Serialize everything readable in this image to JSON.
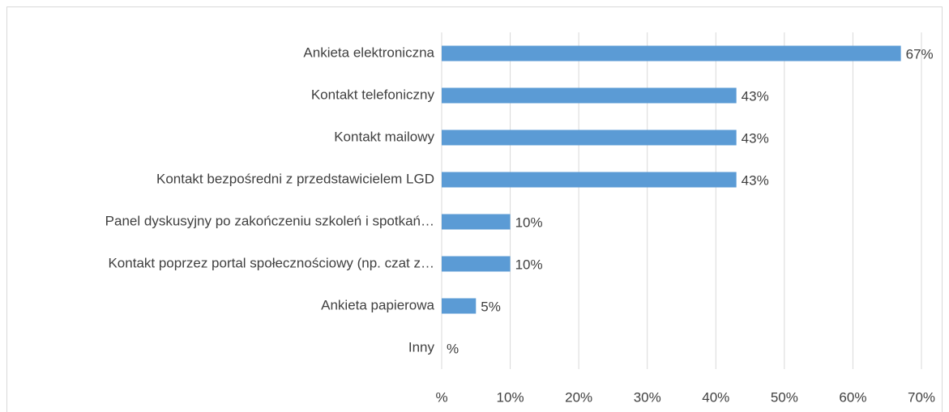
{
  "chart_data": {
    "type": "barh",
    "categories": [
      "Ankieta elektroniczna",
      "Kontakt telefoniczny",
      "Kontakt mailowy",
      "Kontakt bezpośredni z przedstawicielem LGD",
      "Panel dyskusyjny po zakończeniu szkoleń i spotkań…",
      "Kontakt poprzez portal społecznościowy (np. czat z…",
      "Ankieta papierowa",
      "Inny"
    ],
    "values": [
      67,
      43,
      43,
      43,
      10,
      10,
      5,
      0
    ],
    "value_labels": [
      "67%",
      "43%",
      "43%",
      "43%",
      "10%",
      "10%",
      "5%",
      "%"
    ],
    "color": "#5b9bd5",
    "xlim": [
      0,
      70
    ],
    "xticks": [
      {
        "value": 0,
        "label": "%"
      },
      {
        "value": 10,
        "label": "10%"
      },
      {
        "value": 20,
        "label": "20%"
      },
      {
        "value": 30,
        "label": "30%"
      },
      {
        "value": 40,
        "label": "40%"
      },
      {
        "value": 50,
        "label": "50%"
      },
      {
        "value": 60,
        "label": "60%"
      },
      {
        "value": 70,
        "label": "70%"
      }
    ],
    "grid": true
  }
}
